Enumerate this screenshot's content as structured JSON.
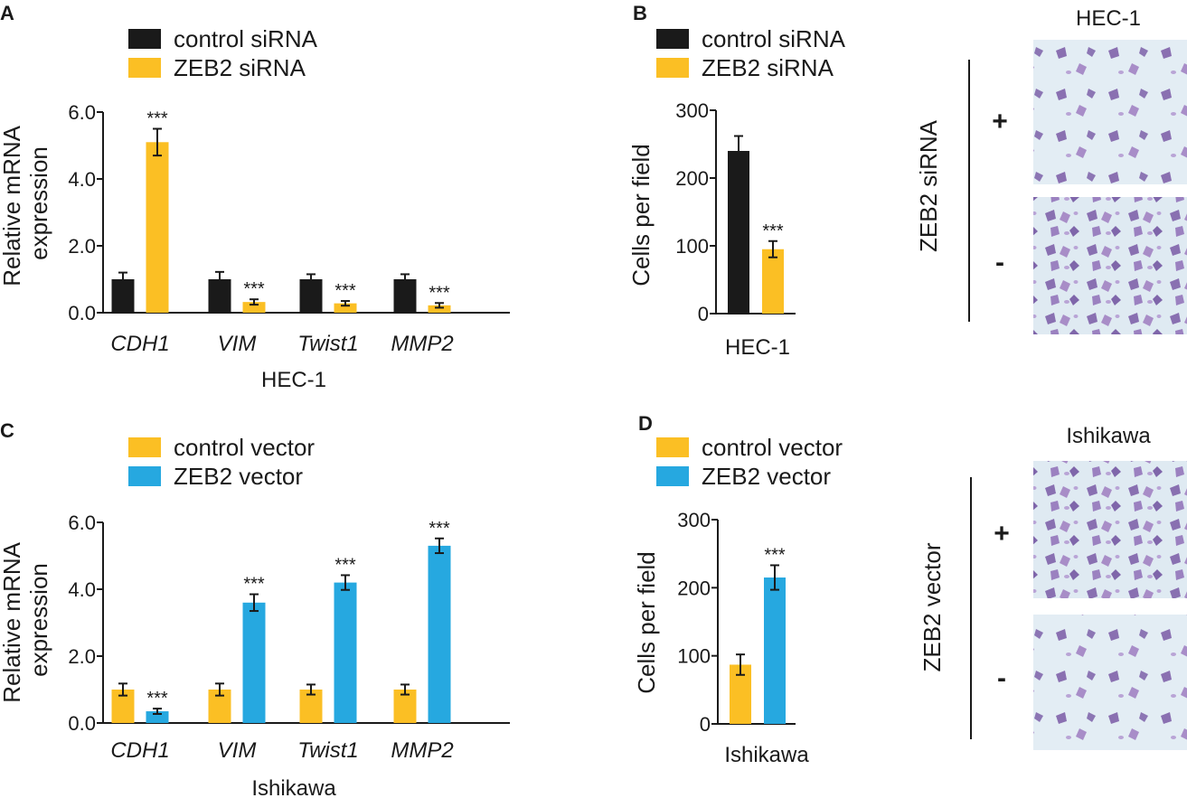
{
  "colors": {
    "black": "#1a1a1a",
    "orange": "#fbbf24",
    "blue": "#26a8e0"
  },
  "chart_data": [
    {
      "panel": "A",
      "type": "bar",
      "xlabel": "HEC-1",
      "ylabel": "Relative mRNA expression",
      "ylim": [
        0,
        6
      ],
      "ytick_labels": [
        "0.0",
        "2.0",
        "4.0",
        "6.0"
      ],
      "categories": [
        "CDH1",
        "VIM",
        "Twist1",
        "MMP2"
      ],
      "series": [
        {
          "name": "control siRNA",
          "color": "#1a1a1a",
          "values": [
            1.0,
            1.0,
            1.0,
            1.0
          ],
          "errors": [
            0.2,
            0.22,
            0.15,
            0.15
          ]
        },
        {
          "name": "ZEB2 siRNA",
          "color": "#fbbf24",
          "values": [
            5.1,
            0.32,
            0.28,
            0.22
          ],
          "errors": [
            0.4,
            0.08,
            0.07,
            0.07
          ]
        }
      ],
      "annotations": [
        "***",
        "***",
        "***",
        "***"
      ]
    },
    {
      "panel": "B",
      "type": "bar",
      "xlabel": "HEC-1",
      "ylabel": "Cells per field",
      "ylim": [
        0,
        300
      ],
      "ytick_labels": [
        "0",
        "100",
        "200",
        "300"
      ],
      "categories": [
        "HEC-1"
      ],
      "series": [
        {
          "name": "control siRNA",
          "color": "#1a1a1a",
          "values": [
            240
          ],
          "errors": [
            22
          ]
        },
        {
          "name": "ZEB2 siRNA",
          "color": "#fbbf24",
          "values": [
            95
          ],
          "errors": [
            12
          ]
        }
      ],
      "annotations": [
        "***"
      ]
    },
    {
      "panel": "C",
      "type": "bar",
      "xlabel": "Ishikawa",
      "ylabel": "Relative mRNA expression",
      "ylim": [
        0,
        6
      ],
      "ytick_labels": [
        "0.0",
        "2.0",
        "4.0",
        "6.0"
      ],
      "categories": [
        "CDH1",
        "VIM",
        "Twist1",
        "MMP2"
      ],
      "series": [
        {
          "name": "control vector",
          "color": "#fbbf24",
          "values": [
            1.0,
            1.0,
            1.0,
            1.0
          ],
          "errors": [
            0.18,
            0.18,
            0.15,
            0.15
          ]
        },
        {
          "name": "ZEB2 vector",
          "color": "#26a8e0",
          "values": [
            0.35,
            3.6,
            4.2,
            5.3
          ],
          "errors": [
            0.08,
            0.25,
            0.22,
            0.22
          ]
        }
      ],
      "annotations": [
        "***",
        "***",
        "***",
        "***"
      ]
    },
    {
      "panel": "D",
      "type": "bar",
      "xlabel": "Ishikawa",
      "ylabel": "Cells per field",
      "ylim": [
        0,
        300
      ],
      "ytick_labels": [
        "0",
        "100",
        "200",
        "300"
      ],
      "categories": [
        "Ishikawa"
      ],
      "series": [
        {
          "name": "control vector",
          "color": "#fbbf24",
          "values": [
            87
          ],
          "errors": [
            15
          ]
        },
        {
          "name": "ZEB2 vector",
          "color": "#26a8e0",
          "values": [
            215
          ],
          "errors": [
            18
          ]
        }
      ],
      "annotations": [
        "***"
      ]
    }
  ],
  "micrographs": [
    {
      "title": "HEC-1",
      "side_label": "ZEB2 siRNA",
      "plus": "+",
      "minus": "-"
    },
    {
      "title": "Ishikawa",
      "side_label": "ZEB2 vector",
      "plus": "+",
      "minus": "-"
    }
  ]
}
